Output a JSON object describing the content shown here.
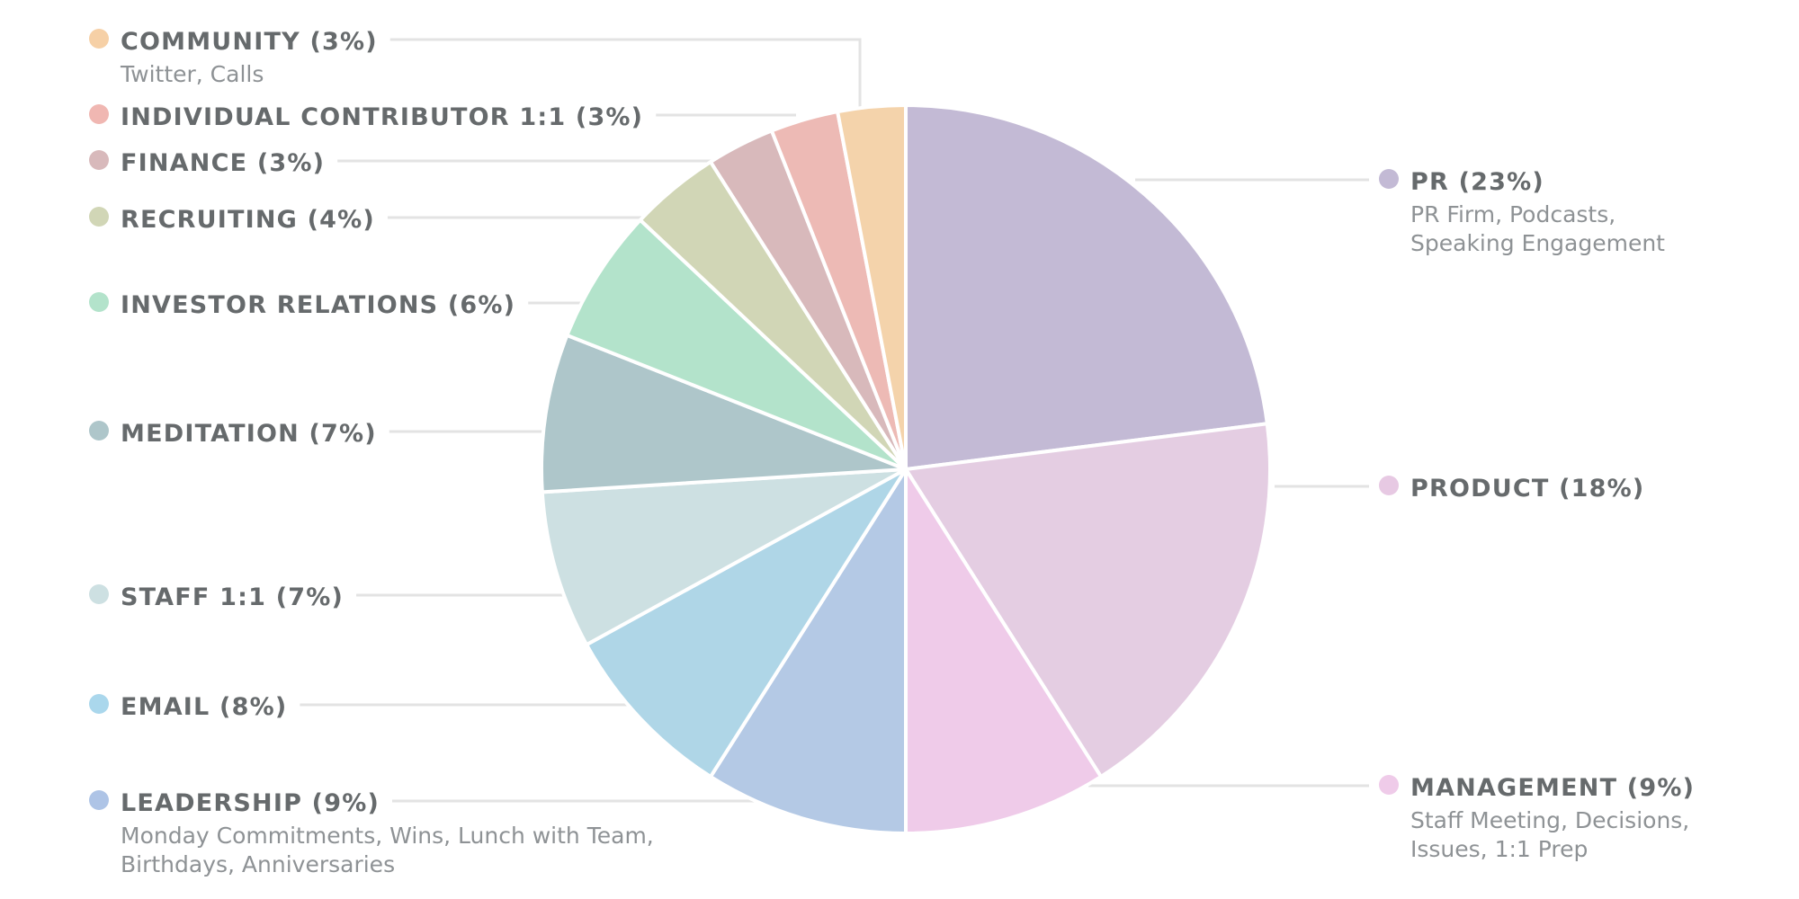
{
  "chart_data": {
    "type": "pie",
    "slices": [
      {
        "label": "PR",
        "value": 23,
        "text": "PR (23%)",
        "sub": [
          "PR Firm, Podcasts,",
          "Speaking Engagement"
        ],
        "color": "#c3bad5",
        "dot": "#c3bad5"
      },
      {
        "label": "PRODUCT",
        "value": 18,
        "text": "PRODUCT (18%)",
        "sub": [],
        "color": "#e4cde2",
        "dot": "#e7c9e3"
      },
      {
        "label": "MANAGEMENT",
        "value": 9,
        "text": "MANAGEMENT (9%)",
        "sub": [
          "Staff Meeting, Decisions,",
          "Issues, 1:1 Prep"
        ],
        "color": "#efcbe9",
        "dot": "#efcbe9"
      },
      {
        "label": "LEADERSHIP",
        "value": 9,
        "text": "LEADERSHIP (9%)",
        "sub": [
          "Monday Commitments, Wins, Lunch with Team,",
          "Birthdays, Anniversaries"
        ],
        "color": "#b4c9e5",
        "dot": "#aec4e6"
      },
      {
        "label": "EMAIL",
        "value": 8,
        "text": "EMAIL (8%)",
        "sub": [],
        "color": "#afd6e7",
        "dot": "#aad7ec"
      },
      {
        "label": "STAFF 1:1",
        "value": 7,
        "text": "STAFF 1:1 (7%)",
        "sub": [],
        "color": "#cde0e2",
        "dot": "#cde0e2"
      },
      {
        "label": "MEDITATION",
        "value": 7,
        "text": "MEDITATION (7%)",
        "sub": [],
        "color": "#aec6ca",
        "dot": "#aec6ca"
      },
      {
        "label": "INVESTOR RELATIONS",
        "value": 6,
        "text": "INVESTOR RELATIONS (6%)",
        "sub": [],
        "color": "#b3e3cb",
        "dot": "#b3e3cb"
      },
      {
        "label": "RECRUITING",
        "value": 4,
        "text": "RECRUITING (4%)",
        "sub": [],
        "color": "#d1d6b6",
        "dot": "#d1d6b6"
      },
      {
        "label": "FINANCE",
        "value": 3,
        "text": "FINANCE (3%)",
        "sub": [],
        "color": "#d8b9bb",
        "dot": "#d8b9bb"
      },
      {
        "label": "INDIVIDUAL CONTRIBUTOR 1:1",
        "value": 3,
        "text": "INDIVIDUAL CONTRIBUTOR 1:1 (3%)",
        "sub": [],
        "color": "#edbab5",
        "dot": "#f0b7b2"
      },
      {
        "label": "COMMUNITY",
        "value": 3,
        "text": "COMMUNITY (3%)",
        "sub": [
          "Twitter, Calls"
        ],
        "color": "#f4d3ab",
        "dot": "#f6d0a6"
      }
    ]
  }
}
